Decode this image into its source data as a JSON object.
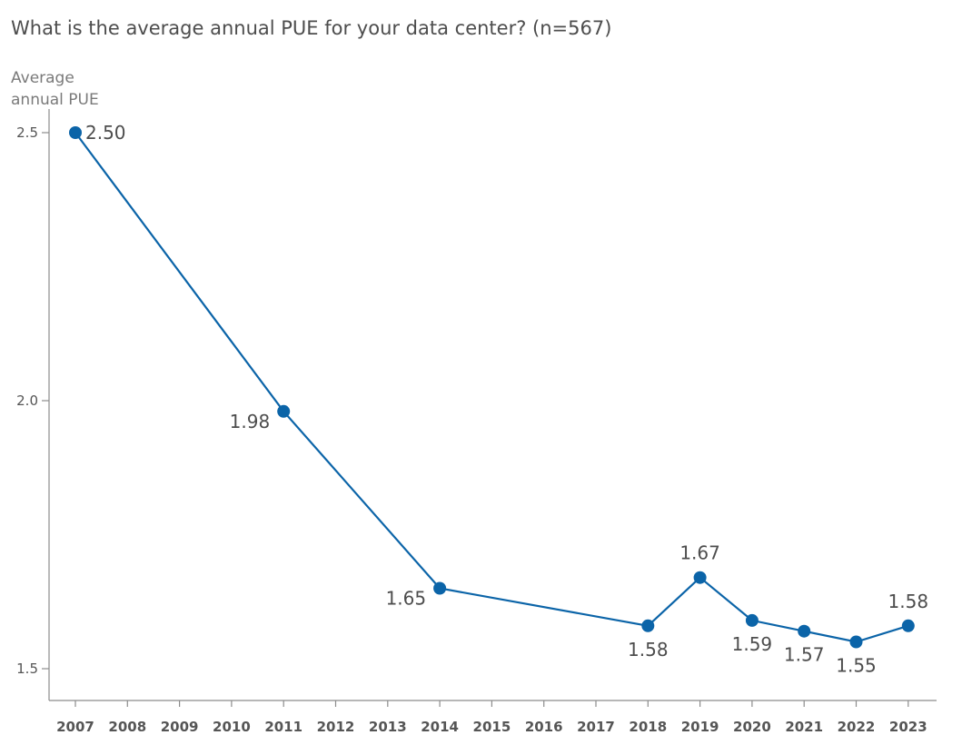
{
  "chart_data": {
    "type": "line",
    "title": "What is the average annual PUE for your data center? (n=567)",
    "ylabel_lines": [
      "Average",
      "annual PUE"
    ],
    "xlabel": "",
    "categories": [
      "2007",
      "2008",
      "2009",
      "2010",
      "2011",
      "2012",
      "2013",
      "2014",
      "2015",
      "2016",
      "2017",
      "2018",
      "2019",
      "2020",
      "2021",
      "2022",
      "2023"
    ],
    "ylim": [
      1.45,
      2.55
    ],
    "yticks": [
      {
        "value": 1.5,
        "label": "1.5"
      },
      {
        "value": 2.0,
        "label": "2.0"
      },
      {
        "value": 2.5,
        "label": "2.5"
      }
    ],
    "grid": false,
    "legend": "none",
    "color": "#0b64a8",
    "points": [
      {
        "x": "2007",
        "y": 2.5,
        "label": "2.50",
        "label_pos": "right"
      },
      {
        "x": "2011",
        "y": 1.98,
        "label": "1.98",
        "label_pos": "left"
      },
      {
        "x": "2014",
        "y": 1.65,
        "label": "1.65",
        "label_pos": "left"
      },
      {
        "x": "2018",
        "y": 1.58,
        "label": "1.58",
        "label_pos": "below"
      },
      {
        "x": "2019",
        "y": 1.67,
        "label": "1.67",
        "label_pos": "above"
      },
      {
        "x": "2020",
        "y": 1.59,
        "label": "1.59",
        "label_pos": "below"
      },
      {
        "x": "2021",
        "y": 1.57,
        "label": "1.57",
        "label_pos": "below"
      },
      {
        "x": "2022",
        "y": 1.55,
        "label": "1.55",
        "label_pos": "below"
      },
      {
        "x": "2023",
        "y": 1.58,
        "label": "1.58",
        "label_pos": "above"
      }
    ]
  }
}
